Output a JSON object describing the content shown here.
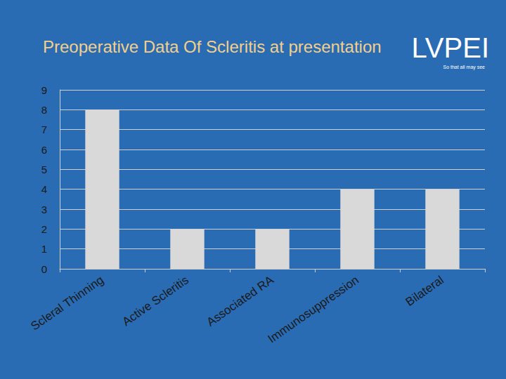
{
  "chart_data": {
    "type": "bar",
    "title": "Preoperative Data Of Scleritis at presentation",
    "categories": [
      "Scleral Thinning",
      "Active Scleritis",
      "Associated RA",
      "Immunosuppression",
      "Bilateral"
    ],
    "values": [
      8,
      2,
      2,
      4,
      4
    ],
    "color": "#d9d9d9",
    "ylim": [
      0,
      9
    ],
    "yticks": [
      0,
      1,
      2,
      3,
      4,
      5,
      6,
      7,
      8,
      9
    ],
    "grid": true,
    "annotations": [
      "LVPEI",
      "So that all may see"
    ]
  }
}
